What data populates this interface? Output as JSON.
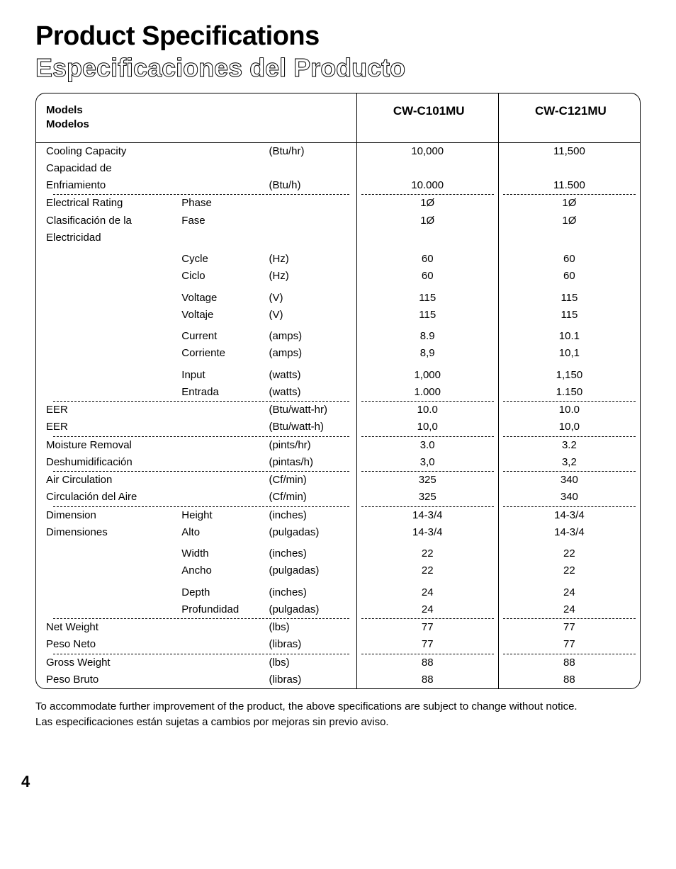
{
  "title_en": "Product Specifications",
  "title_es": "Especificaciones del Producto",
  "header": {
    "label_en": "Models",
    "label_es": "Modelos",
    "model1": "CW-C101MU",
    "model2": "CW-C121MU"
  },
  "cooling": {
    "label_en": "Cooling Capacity",
    "label_es1": "Capacidad de",
    "label_es2": "Enfriamiento",
    "unit_en": "(Btu/hr)",
    "unit_es": "(Btu/h)",
    "m1_en": "10,000",
    "m2_en": "11,500",
    "m1_es": "10.000",
    "m2_es": "11.500"
  },
  "electrical": {
    "label_en": "Electrical Rating",
    "label_es1": "Clasificación de la",
    "label_es2": "Electricidad",
    "phase": {
      "en": "Phase",
      "es": "Fase",
      "unit": "",
      "m1_en": "1Ø",
      "m1_es": "1Ø",
      "m2_en": "1Ø",
      "m2_es": "1Ø"
    },
    "cycle": {
      "en": "Cycle",
      "es": "Ciclo",
      "unit_en": "(Hz)",
      "unit_es": "(Hz)",
      "m1_en": "60",
      "m1_es": "60",
      "m2_en": "60",
      "m2_es": "60"
    },
    "voltage": {
      "en": "Voltage",
      "es": "Voltaje",
      "unit_en": "(V)",
      "unit_es": "(V)",
      "m1_en": "115",
      "m1_es": "115",
      "m2_en": "115",
      "m2_es": "115"
    },
    "current": {
      "en": "Current",
      "es": "Corriente",
      "unit_en": "(amps)",
      "unit_es": "(amps)",
      "m1_en": "8.9",
      "m1_es": "8,9",
      "m2_en": "10.1",
      "m2_es": "10,1"
    },
    "input": {
      "en": "Input",
      "es": "Entrada",
      "unit_en": "(watts)",
      "unit_es": "(watts)",
      "m1_en": "1,000",
      "m1_es": "1.000",
      "m2_en": "1,150",
      "m2_es": "1.150"
    }
  },
  "eer": {
    "label_en": "EER",
    "label_es": "EER",
    "unit_en": "(Btu/watt-hr)",
    "unit_es": "(Btu/watt-h)",
    "m1_en": "10.0",
    "m1_es": "10,0",
    "m2_en": "10.0",
    "m2_es": "10,0"
  },
  "moisture": {
    "label_en": "Moisture Removal",
    "label_es": "Deshumidificación",
    "unit_en": "(pints/hr)",
    "unit_es": "(pintas/h)",
    "m1_en": "3.0",
    "m1_es": "3,0",
    "m2_en": "3.2",
    "m2_es": "3,2"
  },
  "air": {
    "label_en": "Air Circulation",
    "label_es": "Circulación del Aire",
    "unit_en": "(Cf/min)",
    "unit_es": "(Cf/min)",
    "m1_en": "325",
    "m1_es": "325",
    "m2_en": "340",
    "m2_es": "340"
  },
  "dimension": {
    "label_en": "Dimension",
    "label_es": "Dimensiones",
    "height": {
      "en": "Height",
      "es": "Alto",
      "unit_en": "(inches)",
      "unit_es": "(pulgadas)",
      "m1_en": "14-3/4",
      "m1_es": "14-3/4",
      "m2_en": "14-3/4",
      "m2_es": "14-3/4"
    },
    "width": {
      "en": "Width",
      "es": "Ancho",
      "unit_en": "(inches)",
      "unit_es": "(pulgadas)",
      "m1_en": "22",
      "m1_es": "22",
      "m2_en": "22",
      "m2_es": "22"
    },
    "depth": {
      "en": "Depth",
      "es": "Profundidad",
      "unit_en": "(inches)",
      "unit_es": "(pulgadas)",
      "m1_en": "24",
      "m1_es": "24",
      "m2_en": "24",
      "m2_es": "24"
    }
  },
  "netweight": {
    "label_en": "Net Weight",
    "label_es": "Peso Neto",
    "unit_en": "(lbs)",
    "unit_es": "(libras)",
    "m1_en": "77",
    "m1_es": "77",
    "m2_en": "77",
    "m2_es": "77"
  },
  "grossweight": {
    "label_en": "Gross Weight",
    "label_es": "Peso Bruto",
    "unit_en": "(lbs)",
    "unit_es": "(libras)",
    "m1_en": "88",
    "m1_es": "88",
    "m2_en": "88",
    "m2_es": "88"
  },
  "footnote_en": "To accommodate further improvement of the product, the above specifications are subject to change without notice.",
  "footnote_es": "Las especificaciones están sujetas a cambios por mejoras sin previo aviso.",
  "page_number": "4"
}
